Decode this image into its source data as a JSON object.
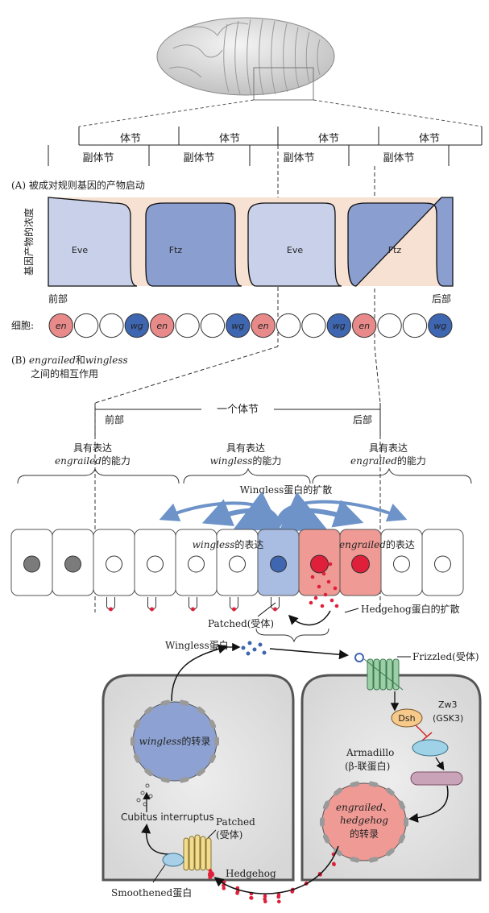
{
  "segments_row": {
    "parasegment_labels": [
      "体节",
      "体节",
      "体节",
      "体节"
    ],
    "segment_labels": [
      "副体节",
      "副体节",
      "副体节",
      "副体节"
    ]
  },
  "panel_a": {
    "title": "(A) 被成对规则基因的产物启动",
    "y_axis_label": "基因产物的浓度",
    "blocks": [
      "Eve",
      "Ftz",
      "Eve",
      "Ftz"
    ],
    "anterior_label": "前部",
    "posterior_label": "后部",
    "cells_label": "细胞:",
    "cells": [
      "en",
      "",
      "",
      "wg",
      "en",
      "",
      "",
      "wg",
      "en",
      "",
      "",
      "wg",
      "en",
      "",
      "",
      "wg"
    ],
    "colors": {
      "eve_fill": "#c9d1ea",
      "ftz_fill": "#8a9fd0",
      "background": "#f6e1d2",
      "en_cell": "#e88a8a",
      "wg_cell": "#3f66b0"
    }
  },
  "panel_b": {
    "title_line1_italic_a": "engrailed",
    "title_line1_mid": "和",
    "title_line1_italic_b": "wingless",
    "title_line2": "之间的相互作用",
    "one_segment_label": "一个体节",
    "anterior_label": "前部",
    "posterior_label": "后部",
    "regions": [
      {
        "line1": "具有表达",
        "italic": "engrailed",
        "rest": "的能力"
      },
      {
        "line1": "具有表达",
        "italic": "wingless",
        "rest": "的能力"
      },
      {
        "line1": "具有表达",
        "italic": "engrailed",
        "rest": "的能力"
      }
    ],
    "wingless_diffusion_label": "Wingless蛋白的扩散",
    "wingless_expression_italic": "wingless",
    "wingless_expression_rest": "的表达",
    "engrailed_expression_italic": "engrailed",
    "engrailed_expression_rest": "的表达",
    "patched_label": "Patched(受体)",
    "hedgehog_diffusion_label": "Hedgehog蛋白的扩散",
    "colors": {
      "wg_cell": "#a9bde3",
      "en_cell": "#ef9a94",
      "hedgehog_dot": "#e0203a"
    }
  },
  "panel_c": {
    "wingless_protein_label": "Wingless蛋白",
    "frizzled_label": "Frizzled(受体)",
    "dsh_label": "Dsh",
    "zw3_label_line1": "Zw3",
    "zw3_label_line2": "(GSK3)",
    "armadillo_line1": "Armadillo",
    "armadillo_line2": "(β-联蛋白)",
    "wingless_transcription_italic": "wingless",
    "wingless_transcription_rest": "的转录",
    "en_hh_line1_italic": "engrailed",
    "en_hh_line1_rest": "、",
    "en_hh_line2_italic": "hedgehog",
    "en_hh_line3": "的转录",
    "cubitus_label": "Cubitus interruptus",
    "patched_line1": "Patched",
    "patched_line2": "(受体)",
    "hedgehog_label": "Hedgehog",
    "smoothened_label": "Smoothened蛋白"
  }
}
